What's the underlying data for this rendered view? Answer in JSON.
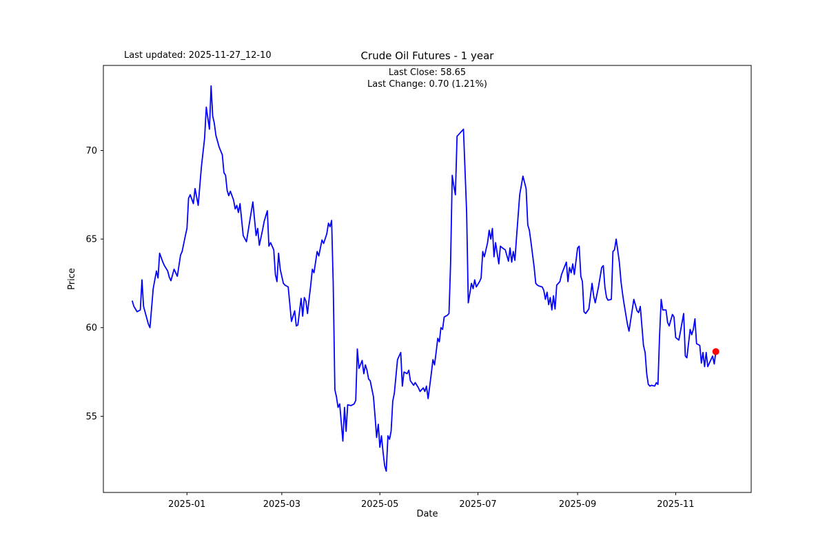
{
  "header": {
    "last_updated": "Last updated: 2025-11-27_12-10"
  },
  "chart_data": {
    "type": "line",
    "title": "Crude Oil Futures - 1 year",
    "xlabel": "Date",
    "ylabel": "Price",
    "annotation": {
      "line1": "Last Close: 58.65",
      "line2": "Last Change: 0.70 (1.21%)"
    },
    "last_close": 58.65,
    "last_change": "0.70 (1.21%)",
    "line_color": "#0000ff",
    "marker_color": "#ff0000",
    "grid": false,
    "legend": "none",
    "xlim": [
      "2024-11-10",
      "2025-12-18"
    ],
    "ylim": [
      50.7,
      74.8
    ],
    "yticks": [
      55,
      60,
      65,
      70
    ],
    "xticks": [
      {
        "date": "2025-01-01",
        "label": "2025-01"
      },
      {
        "date": "2025-03-01",
        "label": "2025-03"
      },
      {
        "date": "2025-05-01",
        "label": "2025-05"
      },
      {
        "date": "2025-07-01",
        "label": "2025-07"
      },
      {
        "date": "2025-09-01",
        "label": "2025-09"
      },
      {
        "date": "2025-11-01",
        "label": "2025-11"
      }
    ],
    "points": [
      [
        "2024-11-28",
        61.5
      ],
      [
        "2024-11-29",
        61.2
      ],
      [
        "2024-12-01",
        60.9
      ],
      [
        "2024-12-03",
        61.0
      ],
      [
        "2024-12-04",
        62.7
      ],
      [
        "2024-12-05",
        61.2
      ],
      [
        "2024-12-08",
        60.2
      ],
      [
        "2024-12-09",
        60.0
      ],
      [
        "2024-12-11",
        62.2
      ],
      [
        "2024-12-13",
        63.2
      ],
      [
        "2024-12-14",
        62.8
      ],
      [
        "2024-12-15",
        64.2
      ],
      [
        "2024-12-17",
        63.7
      ],
      [
        "2024-12-18",
        63.5
      ],
      [
        "2024-12-20",
        63.2
      ],
      [
        "2024-12-21",
        62.85
      ],
      [
        "2024-12-22",
        62.65
      ],
      [
        "2024-12-24",
        63.3
      ],
      [
        "2024-12-26",
        62.9
      ],
      [
        "2024-12-28",
        64.1
      ],
      [
        "2024-12-29",
        64.3
      ],
      [
        "2024-12-31",
        65.2
      ],
      [
        "2025-01-01",
        65.6
      ],
      [
        "2025-01-02",
        67.3
      ],
      [
        "2025-01-03",
        67.5
      ],
      [
        "2025-01-05",
        67.0
      ],
      [
        "2025-01-06",
        67.85
      ],
      [
        "2025-01-08",
        66.9
      ],
      [
        "2025-01-10",
        69.1
      ],
      [
        "2025-01-12",
        70.7
      ],
      [
        "2025-01-13",
        72.45
      ],
      [
        "2025-01-15",
        71.2
      ],
      [
        "2025-01-16",
        73.65
      ],
      [
        "2025-01-17",
        71.95
      ],
      [
        "2025-01-18",
        71.55
      ],
      [
        "2025-01-19",
        70.85
      ],
      [
        "2025-01-21",
        70.2
      ],
      [
        "2025-01-23",
        69.75
      ],
      [
        "2025-01-24",
        68.75
      ],
      [
        "2025-01-25",
        68.6
      ],
      [
        "2025-01-26",
        67.75
      ],
      [
        "2025-01-27",
        67.45
      ],
      [
        "2025-01-28",
        67.7
      ],
      [
        "2025-01-30",
        67.2
      ],
      [
        "2025-01-31",
        66.7
      ],
      [
        "2025-02-01",
        66.9
      ],
      [
        "2025-02-02",
        66.5
      ],
      [
        "2025-02-03",
        67.0
      ],
      [
        "2025-02-05",
        65.2
      ],
      [
        "2025-02-07",
        64.85
      ],
      [
        "2025-02-09",
        66.0
      ],
      [
        "2025-02-11",
        67.1
      ],
      [
        "2025-02-13",
        65.2
      ],
      [
        "2025-02-14",
        65.6
      ],
      [
        "2025-02-15",
        64.65
      ],
      [
        "2025-02-17",
        65.5
      ],
      [
        "2025-02-18",
        66.0
      ],
      [
        "2025-02-20",
        66.6
      ],
      [
        "2025-02-21",
        64.6
      ],
      [
        "2025-02-22",
        64.8
      ],
      [
        "2025-02-24",
        64.4
      ],
      [
        "2025-02-25",
        63.0
      ],
      [
        "2025-02-26",
        62.6
      ],
      [
        "2025-02-27",
        64.2
      ],
      [
        "2025-02-28",
        63.3
      ],
      [
        "2025-03-02",
        62.5
      ],
      [
        "2025-03-03",
        62.4
      ],
      [
        "2025-03-05",
        62.3
      ],
      [
        "2025-03-06",
        61.3
      ],
      [
        "2025-03-07",
        60.35
      ],
      [
        "2025-03-09",
        60.95
      ],
      [
        "2025-03-10",
        60.1
      ],
      [
        "2025-03-11",
        60.15
      ],
      [
        "2025-03-13",
        61.65
      ],
      [
        "2025-03-14",
        60.65
      ],
      [
        "2025-03-15",
        61.7
      ],
      [
        "2025-03-16",
        61.5
      ],
      [
        "2025-03-17",
        60.8
      ],
      [
        "2025-03-18",
        61.65
      ],
      [
        "2025-03-19",
        62.4
      ],
      [
        "2025-03-20",
        63.3
      ],
      [
        "2025-03-21",
        63.1
      ],
      [
        "2025-03-23",
        64.3
      ],
      [
        "2025-03-24",
        64.05
      ],
      [
        "2025-03-26",
        64.95
      ],
      [
        "2025-03-27",
        64.75
      ],
      [
        "2025-03-29",
        65.3
      ],
      [
        "2025-03-30",
        65.9
      ],
      [
        "2025-03-31",
        65.7
      ],
      [
        "2025-04-01",
        66.05
      ],
      [
        "2025-04-02",
        62.5
      ],
      [
        "2025-04-03",
        56.5
      ],
      [
        "2025-04-04",
        56.1
      ],
      [
        "2025-04-05",
        55.5
      ],
      [
        "2025-04-06",
        55.7
      ],
      [
        "2025-04-08",
        53.6
      ],
      [
        "2025-04-09",
        55.5
      ],
      [
        "2025-04-10",
        54.15
      ],
      [
        "2025-04-11",
        55.65
      ],
      [
        "2025-04-13",
        55.6
      ],
      [
        "2025-04-15",
        55.7
      ],
      [
        "2025-04-16",
        55.9
      ],
      [
        "2025-04-17",
        58.8
      ],
      [
        "2025-04-18",
        57.7
      ],
      [
        "2025-04-20",
        58.15
      ],
      [
        "2025-04-21",
        57.4
      ],
      [
        "2025-04-22",
        57.9
      ],
      [
        "2025-04-23",
        57.6
      ],
      [
        "2025-04-24",
        57.1
      ],
      [
        "2025-04-25",
        57.0
      ],
      [
        "2025-04-27",
        56.1
      ],
      [
        "2025-04-28",
        55.0
      ],
      [
        "2025-04-29",
        53.8
      ],
      [
        "2025-04-30",
        54.55
      ],
      [
        "2025-05-01",
        53.25
      ],
      [
        "2025-05-02",
        53.9
      ],
      [
        "2025-05-03",
        52.95
      ],
      [
        "2025-05-04",
        52.2
      ],
      [
        "2025-05-05",
        51.9
      ],
      [
        "2025-05-06",
        53.9
      ],
      [
        "2025-05-07",
        53.7
      ],
      [
        "2025-05-08",
        54.15
      ],
      [
        "2025-05-09",
        55.85
      ],
      [
        "2025-05-10",
        56.3
      ],
      [
        "2025-05-12",
        58.2
      ],
      [
        "2025-05-14",
        58.6
      ],
      [
        "2025-05-15",
        56.7
      ],
      [
        "2025-05-16",
        57.5
      ],
      [
        "2025-05-18",
        57.4
      ],
      [
        "2025-05-19",
        57.6
      ],
      [
        "2025-05-20",
        57.0
      ],
      [
        "2025-05-22",
        56.75
      ],
      [
        "2025-05-23",
        56.9
      ],
      [
        "2025-05-25",
        56.6
      ],
      [
        "2025-05-26",
        56.4
      ],
      [
        "2025-05-28",
        56.6
      ],
      [
        "2025-05-29",
        56.4
      ],
      [
        "2025-05-30",
        56.7
      ],
      [
        "2025-05-31",
        56.0
      ],
      [
        "2025-06-02",
        57.4
      ],
      [
        "2025-06-03",
        58.2
      ],
      [
        "2025-06-04",
        57.9
      ],
      [
        "2025-06-05",
        58.6
      ],
      [
        "2025-06-06",
        59.4
      ],
      [
        "2025-06-07",
        59.2
      ],
      [
        "2025-06-08",
        60.0
      ],
      [
        "2025-06-09",
        59.9
      ],
      [
        "2025-06-10",
        60.6
      ],
      [
        "2025-06-12",
        60.7
      ],
      [
        "2025-06-13",
        60.8
      ],
      [
        "2025-06-14",
        63.6
      ],
      [
        "2025-06-15",
        68.6
      ],
      [
        "2025-06-16",
        68.0
      ],
      [
        "2025-06-17",
        67.5
      ],
      [
        "2025-06-18",
        70.8
      ],
      [
        "2025-06-20",
        71.0
      ],
      [
        "2025-06-22",
        71.2
      ],
      [
        "2025-06-24",
        66.5
      ],
      [
        "2025-06-25",
        61.4
      ],
      [
        "2025-06-27",
        62.5
      ],
      [
        "2025-06-28",
        62.2
      ],
      [
        "2025-06-29",
        62.7
      ],
      [
        "2025-06-30",
        62.3
      ],
      [
        "2025-07-02",
        62.6
      ],
      [
        "2025-07-03",
        62.8
      ],
      [
        "2025-07-04",
        64.3
      ],
      [
        "2025-07-05",
        64.0
      ],
      [
        "2025-07-07",
        64.8
      ],
      [
        "2025-07-08",
        65.5
      ],
      [
        "2025-07-09",
        65.0
      ],
      [
        "2025-07-10",
        65.6
      ],
      [
        "2025-07-11",
        64.0
      ],
      [
        "2025-07-12",
        64.8
      ],
      [
        "2025-07-14",
        63.6
      ],
      [
        "2025-07-15",
        64.6
      ],
      [
        "2025-07-17",
        64.45
      ],
      [
        "2025-07-18",
        64.4
      ],
      [
        "2025-07-20",
        63.75
      ],
      [
        "2025-07-21",
        64.5
      ],
      [
        "2025-07-22",
        63.7
      ],
      [
        "2025-07-23",
        64.3
      ],
      [
        "2025-07-24",
        63.8
      ],
      [
        "2025-07-25",
        65.1
      ],
      [
        "2025-07-27",
        67.5
      ],
      [
        "2025-07-29",
        68.55
      ],
      [
        "2025-07-31",
        67.85
      ],
      [
        "2025-08-01",
        65.8
      ],
      [
        "2025-08-02",
        65.5
      ],
      [
        "2025-08-03",
        64.85
      ],
      [
        "2025-08-05",
        63.4
      ],
      [
        "2025-08-06",
        62.5
      ],
      [
        "2025-08-07",
        62.4
      ],
      [
        "2025-08-08",
        62.35
      ],
      [
        "2025-08-10",
        62.3
      ],
      [
        "2025-08-11",
        62.1
      ],
      [
        "2025-08-12",
        61.6
      ],
      [
        "2025-08-13",
        62.0
      ],
      [
        "2025-08-14",
        61.3
      ],
      [
        "2025-08-15",
        61.7
      ],
      [
        "2025-08-16",
        61.0
      ],
      [
        "2025-08-17",
        61.8
      ],
      [
        "2025-08-18",
        61.05
      ],
      [
        "2025-08-19",
        62.4
      ],
      [
        "2025-08-21",
        62.6
      ],
      [
        "2025-08-22",
        63.0
      ],
      [
        "2025-08-25",
        63.7
      ],
      [
        "2025-08-26",
        62.6
      ],
      [
        "2025-08-27",
        63.4
      ],
      [
        "2025-08-28",
        63.1
      ],
      [
        "2025-08-29",
        63.6
      ],
      [
        "2025-08-30",
        63.0
      ],
      [
        "2025-09-01",
        64.5
      ],
      [
        "2025-09-02",
        64.6
      ],
      [
        "2025-09-03",
        62.9
      ],
      [
        "2025-09-04",
        62.6
      ],
      [
        "2025-09-05",
        60.9
      ],
      [
        "2025-09-06",
        60.8
      ],
      [
        "2025-09-08",
        61.05
      ],
      [
        "2025-09-10",
        62.5
      ],
      [
        "2025-09-11",
        61.8
      ],
      [
        "2025-09-12",
        61.4
      ],
      [
        "2025-09-14",
        62.3
      ],
      [
        "2025-09-16",
        63.4
      ],
      [
        "2025-09-17",
        63.5
      ],
      [
        "2025-09-18",
        62.3
      ],
      [
        "2025-09-19",
        61.7
      ],
      [
        "2025-09-20",
        61.55
      ],
      [
        "2025-09-22",
        61.6
      ],
      [
        "2025-09-23",
        64.3
      ],
      [
        "2025-09-24",
        64.4
      ],
      [
        "2025-09-25",
        65.0
      ],
      [
        "2025-09-27",
        63.7
      ],
      [
        "2025-09-28",
        62.6
      ],
      [
        "2025-09-29",
        61.9
      ],
      [
        "2025-09-30",
        61.3
      ],
      [
        "2025-10-02",
        60.2
      ],
      [
        "2025-10-03",
        59.8
      ],
      [
        "2025-10-06",
        61.6
      ],
      [
        "2025-10-08",
        60.95
      ],
      [
        "2025-10-09",
        60.85
      ],
      [
        "2025-10-10",
        61.2
      ],
      [
        "2025-10-12",
        59.0
      ],
      [
        "2025-10-13",
        58.6
      ],
      [
        "2025-10-14",
        57.4
      ],
      [
        "2025-10-15",
        56.8
      ],
      [
        "2025-10-16",
        56.7
      ],
      [
        "2025-10-17",
        56.75
      ],
      [
        "2025-10-19",
        56.7
      ],
      [
        "2025-10-20",
        56.9
      ],
      [
        "2025-10-21",
        56.8
      ],
      [
        "2025-10-22",
        59.5
      ],
      [
        "2025-10-23",
        61.6
      ],
      [
        "2025-10-24",
        61.0
      ],
      [
        "2025-10-26",
        61.0
      ],
      [
        "2025-10-27",
        60.3
      ],
      [
        "2025-10-28",
        60.1
      ],
      [
        "2025-10-30",
        60.75
      ],
      [
        "2025-10-31",
        60.6
      ],
      [
        "2025-11-01",
        59.45
      ],
      [
        "2025-11-03",
        59.3
      ],
      [
        "2025-11-04",
        59.8
      ],
      [
        "2025-11-06",
        60.8
      ],
      [
        "2025-11-07",
        58.4
      ],
      [
        "2025-11-08",
        58.3
      ],
      [
        "2025-11-10",
        59.9
      ],
      [
        "2025-11-11",
        59.6
      ],
      [
        "2025-11-12",
        59.9
      ],
      [
        "2025-11-13",
        60.5
      ],
      [
        "2025-11-14",
        59.1
      ],
      [
        "2025-11-16",
        59.0
      ],
      [
        "2025-11-17",
        58.0
      ],
      [
        "2025-11-18",
        58.6
      ],
      [
        "2025-11-19",
        57.8
      ],
      [
        "2025-11-20",
        58.6
      ],
      [
        "2025-11-21",
        57.8
      ],
      [
        "2025-11-24",
        58.4
      ],
      [
        "2025-11-25",
        57.95
      ],
      [
        "2025-11-26",
        58.65
      ]
    ]
  }
}
